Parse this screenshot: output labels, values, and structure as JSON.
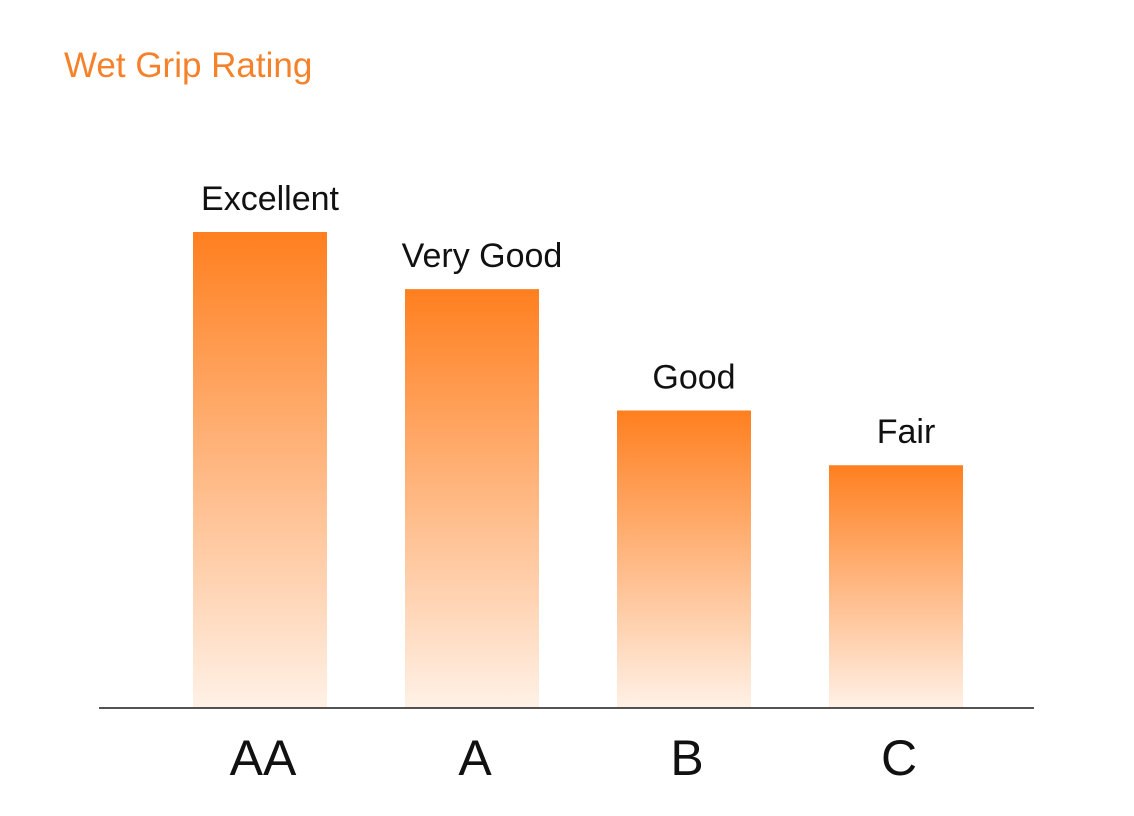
{
  "chart_data": {
    "type": "bar",
    "title": "Wet Grip Rating",
    "categories": [
      "AA",
      "A",
      "B",
      "C"
    ],
    "values": [
      100,
      88,
      62.5,
      51
    ],
    "data_labels": [
      "Excellent",
      "Very Good",
      "Good",
      "Fair"
    ],
    "xlabel": "",
    "ylabel": "",
    "ylim": [
      0,
      100
    ],
    "grid": false,
    "legend": "none",
    "colors": {
      "title": "#f5822a",
      "bar_top": "#ff7f1f",
      "bar_bottom": "#fff1e7",
      "axis": "#1a1a1a",
      "text": "#111111"
    }
  }
}
